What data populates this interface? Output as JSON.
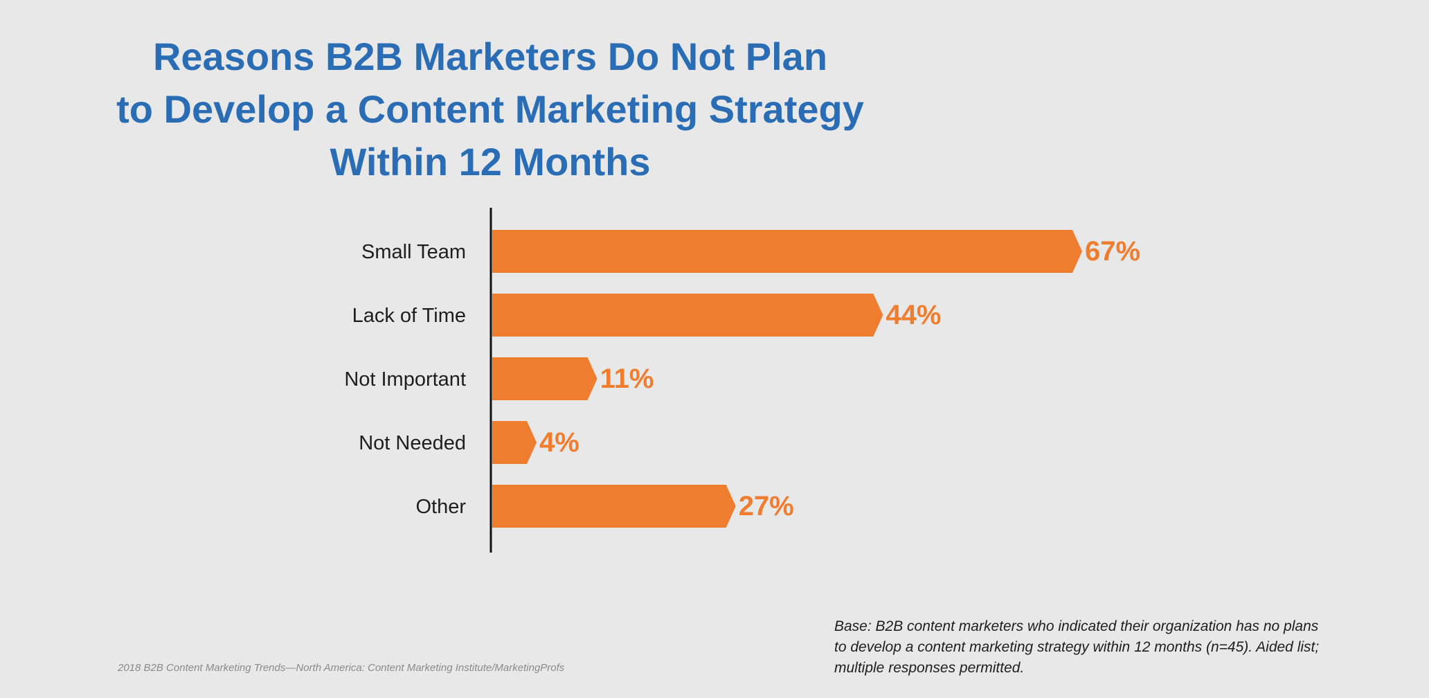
{
  "chart_data": {
    "type": "bar",
    "orientation": "horizontal",
    "title_lines": [
      "Reasons B2B Marketers Do Not Plan",
      "to Develop a Content Marketing Strategy",
      "Within 12 Months"
    ],
    "categories": [
      "Small Team",
      "Lack of Time",
      "Not Important",
      "Not Needed",
      "Other"
    ],
    "values": [
      67,
      44,
      11,
      4,
      27
    ],
    "value_labels": [
      "67%",
      "44%",
      "11%",
      "4%",
      "27%"
    ],
    "value_unit": "%",
    "xlim": [
      0,
      67
    ],
    "grid": false,
    "legend": "none"
  },
  "notes": {
    "base_lines": [
      "Base: B2B content marketers who indicated their organization has no plans",
      "to develop a content marketing strategy within 12 months (n=45). Aided list;",
      "multiple responses permitted."
    ],
    "source": "2018 B2B Content Marketing Trends—North America: Content Marketing Institute/MarketingProfs"
  },
  "colors": {
    "background": "#e8e8e8",
    "title": "#2a6db5",
    "bar": "#ef7d30",
    "value_label": "#ef7d30",
    "axis": "#111111",
    "category_label": "#1e1e1e"
  }
}
